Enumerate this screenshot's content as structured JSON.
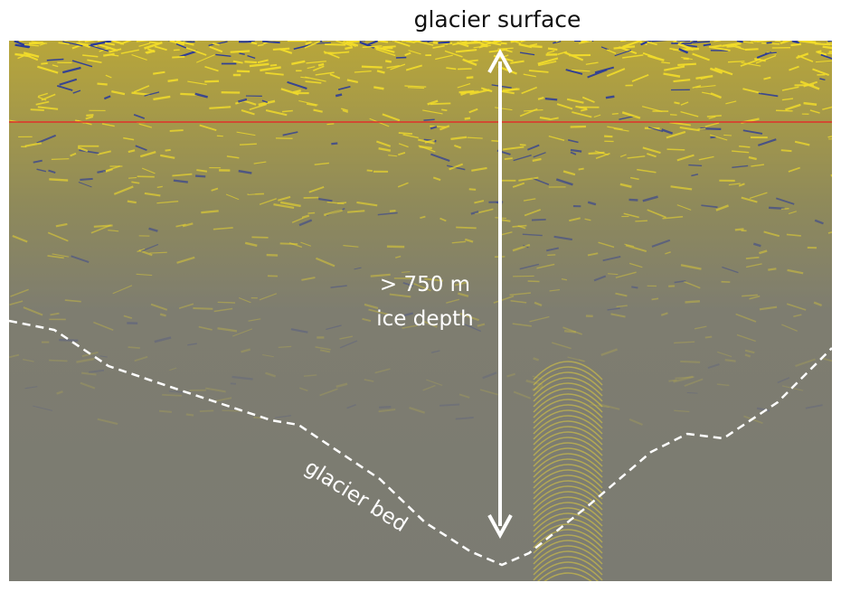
{
  "header": {
    "title": "glacier surface"
  },
  "annotations": {
    "depth_value": "> 750 m",
    "depth_label": "ice depth",
    "bed_label": "glacier bed"
  }
}
